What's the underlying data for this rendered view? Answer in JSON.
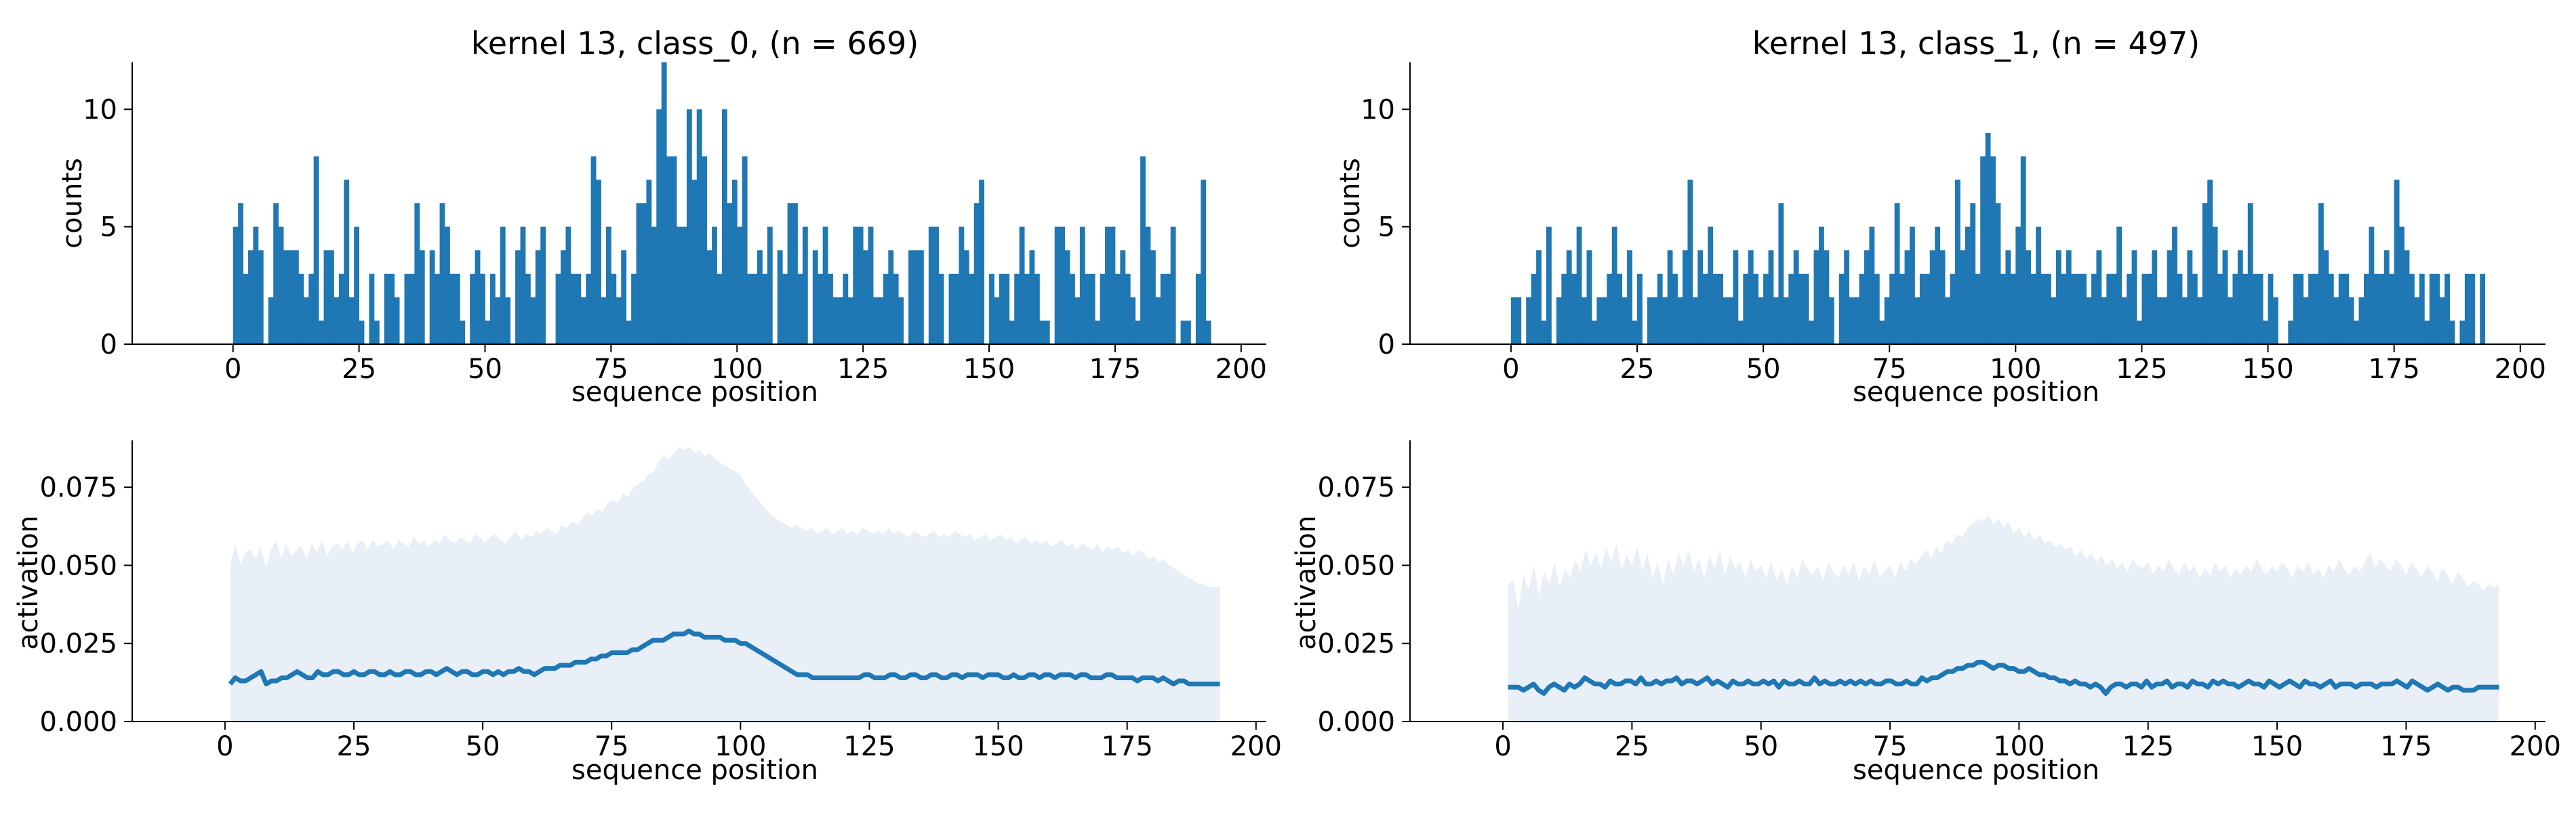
{
  "colors": {
    "bar": "#1f77b4",
    "line": "#1f77b4",
    "band": "#e8eff7",
    "axis": "#000000",
    "background": "#ffffff"
  },
  "chart_data": [
    {
      "type": "bar",
      "title": "kernel 13, class_0, (n = 669)",
      "xlabel": "sequence position",
      "ylabel": "counts",
      "xlim": [
        -20,
        205
      ],
      "ylim": [
        0,
        12
      ],
      "xticks": [
        0,
        25,
        50,
        75,
        100,
        125,
        150,
        175,
        200
      ],
      "yticks": [
        0,
        5,
        10
      ],
      "x_start": 0,
      "values": [
        5,
        6,
        3,
        4,
        5,
        4,
        0,
        2,
        6,
        5,
        4,
        4,
        4,
        3,
        2,
        3,
        8,
        1,
        4,
        4,
        2,
        3,
        7,
        2,
        5,
        1,
        0,
        3,
        1,
        0,
        3,
        3,
        2,
        0,
        3,
        3,
        6,
        4,
        0,
        4,
        3,
        6,
        5,
        3,
        3,
        1,
        0,
        3,
        4,
        3,
        1,
        3,
        2,
        5,
        2,
        0,
        4,
        5,
        3,
        2,
        4,
        5,
        0,
        0,
        3,
        4,
        5,
        3,
        3,
        2,
        3,
        8,
        7,
        2,
        5,
        3,
        2,
        4,
        1,
        3,
        6,
        6,
        7,
        5,
        10,
        12,
        8,
        8,
        5,
        5,
        10,
        7,
        10,
        8,
        4,
        5,
        3,
        10,
        6,
        7,
        5,
        8,
        3,
        3,
        4,
        3,
        5,
        0,
        4,
        3,
        6,
        6,
        3,
        5,
        0,
        4,
        3,
        5,
        3,
        2,
        2,
        3,
        2,
        5,
        5,
        4,
        5,
        2,
        2,
        3,
        4,
        3,
        2,
        0,
        4,
        4,
        4,
        0,
        5,
        5,
        3,
        0,
        3,
        3,
        5,
        4,
        3,
        6,
        7,
        0,
        3,
        2,
        3,
        3,
        1,
        3,
        5,
        3,
        4,
        3,
        1,
        1,
        0,
        5,
        5,
        4,
        3,
        2,
        5,
        3,
        3,
        1,
        3,
        5,
        5,
        3,
        4,
        3,
        2,
        1,
        8,
        5,
        4,
        2,
        3,
        3,
        5,
        0,
        1,
        1,
        0,
        3,
        7,
        1,
        0
      ]
    },
    {
      "type": "bar",
      "title": "kernel 13, class_1, (n = 497)",
      "xlabel": "sequence position",
      "ylabel": "counts",
      "xlim": [
        -20,
        205
      ],
      "ylim": [
        0,
        12
      ],
      "xticks": [
        0,
        25,
        50,
        75,
        100,
        125,
        150,
        175,
        200
      ],
      "yticks": [
        0,
        5,
        10
      ],
      "x_start": 0,
      "values": [
        2,
        2,
        0,
        2,
        3,
        4,
        1,
        5,
        0,
        2,
        3,
        4,
        3,
        5,
        2,
        4,
        1,
        2,
        2,
        3,
        5,
        3,
        2,
        4,
        1,
        3,
        0,
        2,
        2,
        3,
        2,
        4,
        3,
        2,
        4,
        7,
        2,
        4,
        3,
        5,
        3,
        3,
        2,
        2,
        4,
        1,
        3,
        4,
        3,
        2,
        3,
        4,
        2,
        6,
        2,
        3,
        4,
        3,
        3,
        1,
        4,
        5,
        4,
        2,
        0,
        3,
        4,
        2,
        2,
        3,
        4,
        5,
        3,
        1,
        2,
        3,
        6,
        3,
        4,
        5,
        2,
        3,
        3,
        4,
        5,
        4,
        2,
        3,
        7,
        4,
        5,
        6,
        3,
        8,
        9,
        8,
        6,
        3,
        4,
        3,
        5,
        8,
        4,
        3,
        5,
        3,
        3,
        2,
        4,
        3,
        4,
        3,
        3,
        3,
        2,
        3,
        4,
        2,
        3,
        3,
        5,
        2,
        3,
        4,
        1,
        3,
        3,
        4,
        2,
        2,
        4,
        5,
        3,
        2,
        4,
        3,
        2,
        6,
        7,
        5,
        3,
        4,
        2,
        3,
        4,
        3,
        6,
        3,
        3,
        1,
        3,
        2,
        0,
        0,
        1,
        3,
        3,
        2,
        3,
        3,
        6,
        4,
        3,
        2,
        3,
        3,
        2,
        1,
        2,
        3,
        5,
        3,
        3,
        4,
        3,
        7,
        5,
        4,
        3,
        2,
        3,
        1,
        3,
        3,
        2,
        3,
        1,
        0,
        1,
        3,
        3,
        0,
        3,
        0
      ]
    },
    {
      "type": "area",
      "xlabel": "sequence position",
      "ylabel": "activation",
      "xlim": [
        -18,
        202
      ],
      "ylim": [
        0,
        0.09
      ],
      "xticks": [
        0,
        25,
        50,
        75,
        100,
        125,
        150,
        175,
        200
      ],
      "yticks": [
        0.0,
        0.025,
        0.05,
        0.075
      ],
      "ytick_labels": [
        "0.000",
        "0.025",
        "0.050",
        "0.075"
      ],
      "x": [
        1,
        193
      ],
      "mean_values": [
        0.012,
        0.014,
        0.013,
        0.013,
        0.014,
        0.015,
        0.016,
        0.012,
        0.013,
        0.013,
        0.014,
        0.014,
        0.015,
        0.016,
        0.015,
        0.014,
        0.014,
        0.016,
        0.015,
        0.015,
        0.016,
        0.016,
        0.015,
        0.015,
        0.016,
        0.015,
        0.015,
        0.016,
        0.016,
        0.015,
        0.015,
        0.016,
        0.015,
        0.015,
        0.016,
        0.016,
        0.015,
        0.015,
        0.016,
        0.016,
        0.015,
        0.016,
        0.017,
        0.016,
        0.015,
        0.016,
        0.016,
        0.015,
        0.015,
        0.016,
        0.016,
        0.015,
        0.016,
        0.015,
        0.016,
        0.016,
        0.017,
        0.016,
        0.016,
        0.015,
        0.016,
        0.017,
        0.017,
        0.017,
        0.018,
        0.018,
        0.018,
        0.019,
        0.019,
        0.019,
        0.02,
        0.02,
        0.021,
        0.021,
        0.022,
        0.022,
        0.022,
        0.022,
        0.023,
        0.023,
        0.024,
        0.025,
        0.026,
        0.026,
        0.026,
        0.027,
        0.028,
        0.028,
        0.028,
        0.029,
        0.028,
        0.028,
        0.027,
        0.027,
        0.027,
        0.027,
        0.026,
        0.026,
        0.026,
        0.025,
        0.025,
        0.024,
        0.023,
        0.022,
        0.021,
        0.02,
        0.019,
        0.018,
        0.017,
        0.016,
        0.015,
        0.015,
        0.015,
        0.014,
        0.014,
        0.014,
        0.014,
        0.014,
        0.014,
        0.014,
        0.014,
        0.014,
        0.014,
        0.015,
        0.015,
        0.014,
        0.014,
        0.014,
        0.015,
        0.015,
        0.014,
        0.014,
        0.015,
        0.015,
        0.014,
        0.014,
        0.015,
        0.015,
        0.014,
        0.014,
        0.015,
        0.015,
        0.014,
        0.015,
        0.015,
        0.015,
        0.014,
        0.015,
        0.015,
        0.015,
        0.014,
        0.014,
        0.015,
        0.014,
        0.014,
        0.015,
        0.015,
        0.014,
        0.015,
        0.015,
        0.014,
        0.015,
        0.015,
        0.015,
        0.014,
        0.015,
        0.015,
        0.014,
        0.014,
        0.014,
        0.015,
        0.015,
        0.014,
        0.014,
        0.014,
        0.014,
        0.013,
        0.014,
        0.014,
        0.014,
        0.013,
        0.014,
        0.013,
        0.012,
        0.013,
        0.013,
        0.012,
        0.012,
        0.012,
        0.012,
        0.012,
        0.012,
        0.012
      ],
      "upper_values": [
        0.05,
        0.057,
        0.05,
        0.054,
        0.055,
        0.052,
        0.056,
        0.049,
        0.055,
        0.058,
        0.052,
        0.057,
        0.053,
        0.055,
        0.056,
        0.052,
        0.057,
        0.054,
        0.058,
        0.053,
        0.056,
        0.057,
        0.055,
        0.058,
        0.054,
        0.057,
        0.058,
        0.055,
        0.058,
        0.056,
        0.057,
        0.058,
        0.055,
        0.058,
        0.057,
        0.056,
        0.059,
        0.057,
        0.058,
        0.056,
        0.058,
        0.057,
        0.06,
        0.058,
        0.057,
        0.059,
        0.058,
        0.057,
        0.06,
        0.059,
        0.057,
        0.059,
        0.06,
        0.058,
        0.057,
        0.059,
        0.061,
        0.058,
        0.06,
        0.059,
        0.061,
        0.06,
        0.062,
        0.061,
        0.06,
        0.063,
        0.062,
        0.064,
        0.063,
        0.065,
        0.067,
        0.066,
        0.068,
        0.067,
        0.07,
        0.071,
        0.07,
        0.073,
        0.072,
        0.075,
        0.076,
        0.077,
        0.079,
        0.08,
        0.083,
        0.085,
        0.084,
        0.086,
        0.088,
        0.087,
        0.088,
        0.086,
        0.087,
        0.085,
        0.086,
        0.084,
        0.083,
        0.082,
        0.081,
        0.08,
        0.079,
        0.076,
        0.074,
        0.072,
        0.07,
        0.068,
        0.066,
        0.065,
        0.064,
        0.063,
        0.062,
        0.063,
        0.062,
        0.061,
        0.062,
        0.06,
        0.061,
        0.062,
        0.06,
        0.061,
        0.062,
        0.06,
        0.061,
        0.06,
        0.062,
        0.061,
        0.06,
        0.061,
        0.06,
        0.062,
        0.06,
        0.061,
        0.06,
        0.059,
        0.061,
        0.06,
        0.059,
        0.06,
        0.061,
        0.059,
        0.06,
        0.059,
        0.061,
        0.06,
        0.059,
        0.06,
        0.058,
        0.059,
        0.06,
        0.058,
        0.059,
        0.06,
        0.058,
        0.059,
        0.057,
        0.058,
        0.059,
        0.057,
        0.058,
        0.057,
        0.058,
        0.056,
        0.057,
        0.058,
        0.056,
        0.057,
        0.055,
        0.057,
        0.056,
        0.055,
        0.057,
        0.054,
        0.056,
        0.055,
        0.056,
        0.054,
        0.055,
        0.053,
        0.055,
        0.054,
        0.052,
        0.053,
        0.051,
        0.052,
        0.05,
        0.049,
        0.048,
        0.047,
        0.046,
        0.045,
        0.044,
        0.044,
        0.043,
        0.043,
        0.043
      ],
      "lower_values": [
        0,
        0
      ]
    },
    {
      "type": "area",
      "xlabel": "sequence position",
      "ylabel": "activation",
      "xlim": [
        -18,
        202
      ],
      "ylim": [
        0,
        0.09
      ],
      "xticks": [
        0,
        25,
        50,
        75,
        100,
        125,
        150,
        175,
        200
      ],
      "yticks": [
        0.0,
        0.025,
        0.05,
        0.075
      ],
      "ytick_labels": [
        "0.000",
        "0.025",
        "0.050",
        "0.075"
      ],
      "x": [
        1,
        193
      ],
      "mean_values": [
        0.011,
        0.011,
        0.011,
        0.01,
        0.011,
        0.012,
        0.01,
        0.009,
        0.011,
        0.012,
        0.011,
        0.01,
        0.012,
        0.011,
        0.012,
        0.014,
        0.013,
        0.012,
        0.012,
        0.011,
        0.013,
        0.012,
        0.012,
        0.013,
        0.013,
        0.012,
        0.014,
        0.012,
        0.012,
        0.013,
        0.012,
        0.013,
        0.013,
        0.014,
        0.012,
        0.013,
        0.013,
        0.012,
        0.013,
        0.014,
        0.012,
        0.013,
        0.012,
        0.011,
        0.013,
        0.012,
        0.012,
        0.013,
        0.012,
        0.012,
        0.013,
        0.012,
        0.013,
        0.011,
        0.013,
        0.012,
        0.012,
        0.013,
        0.012,
        0.012,
        0.014,
        0.012,
        0.013,
        0.012,
        0.012,
        0.013,
        0.012,
        0.013,
        0.012,
        0.013,
        0.012,
        0.013,
        0.012,
        0.012,
        0.013,
        0.013,
        0.012,
        0.012,
        0.013,
        0.012,
        0.012,
        0.014,
        0.013,
        0.014,
        0.014,
        0.015,
        0.016,
        0.016,
        0.017,
        0.017,
        0.018,
        0.018,
        0.019,
        0.019,
        0.018,
        0.017,
        0.018,
        0.018,
        0.017,
        0.017,
        0.016,
        0.016,
        0.017,
        0.016,
        0.015,
        0.015,
        0.014,
        0.014,
        0.013,
        0.013,
        0.012,
        0.013,
        0.012,
        0.012,
        0.011,
        0.012,
        0.011,
        0.009,
        0.011,
        0.012,
        0.012,
        0.011,
        0.012,
        0.012,
        0.011,
        0.013,
        0.011,
        0.012,
        0.012,
        0.013,
        0.011,
        0.012,
        0.012,
        0.011,
        0.013,
        0.012,
        0.012,
        0.011,
        0.013,
        0.012,
        0.013,
        0.012,
        0.012,
        0.011,
        0.012,
        0.013,
        0.012,
        0.012,
        0.011,
        0.013,
        0.012,
        0.011,
        0.012,
        0.013,
        0.012,
        0.011,
        0.013,
        0.012,
        0.012,
        0.011,
        0.012,
        0.013,
        0.011,
        0.012,
        0.012,
        0.012,
        0.011,
        0.012,
        0.012,
        0.012,
        0.011,
        0.012,
        0.012,
        0.012,
        0.013,
        0.012,
        0.011,
        0.013,
        0.012,
        0.011,
        0.01,
        0.011,
        0.012,
        0.011,
        0.01,
        0.011,
        0.011,
        0.01,
        0.01,
        0.01,
        0.011,
        0.011,
        0.011,
        0.011,
        0.011
      ],
      "upper_values": [
        0.044,
        0.045,
        0.036,
        0.047,
        0.042,
        0.05,
        0.04,
        0.048,
        0.044,
        0.051,
        0.043,
        0.049,
        0.046,
        0.052,
        0.048,
        0.055,
        0.05,
        0.054,
        0.049,
        0.056,
        0.051,
        0.057,
        0.049,
        0.053,
        0.05,
        0.056,
        0.048,
        0.054,
        0.046,
        0.051,
        0.044,
        0.052,
        0.047,
        0.054,
        0.05,
        0.055,
        0.048,
        0.052,
        0.046,
        0.053,
        0.049,
        0.055,
        0.047,
        0.053,
        0.049,
        0.051,
        0.046,
        0.052,
        0.048,
        0.05,
        0.046,
        0.051,
        0.045,
        0.049,
        0.044,
        0.05,
        0.046,
        0.052,
        0.049,
        0.047,
        0.05,
        0.045,
        0.051,
        0.048,
        0.046,
        0.05,
        0.047,
        0.051,
        0.045,
        0.05,
        0.047,
        0.052,
        0.046,
        0.048,
        0.05,
        0.046,
        0.051,
        0.048,
        0.052,
        0.05,
        0.053,
        0.055,
        0.052,
        0.056,
        0.054,
        0.058,
        0.057,
        0.06,
        0.059,
        0.062,
        0.063,
        0.065,
        0.064,
        0.066,
        0.063,
        0.065,
        0.062,
        0.064,
        0.06,
        0.062,
        0.059,
        0.061,
        0.058,
        0.06,
        0.057,
        0.058,
        0.056,
        0.057,
        0.055,
        0.056,
        0.053,
        0.055,
        0.052,
        0.054,
        0.051,
        0.053,
        0.05,
        0.052,
        0.049,
        0.051,
        0.048,
        0.052,
        0.05,
        0.049,
        0.051,
        0.047,
        0.05,
        0.048,
        0.052,
        0.049,
        0.047,
        0.051,
        0.048,
        0.05,
        0.046,
        0.049,
        0.047,
        0.051,
        0.048,
        0.05,
        0.046,
        0.049,
        0.047,
        0.05,
        0.048,
        0.052,
        0.049,
        0.047,
        0.05,
        0.048,
        0.051,
        0.049,
        0.046,
        0.05,
        0.048,
        0.051,
        0.047,
        0.049,
        0.046,
        0.05,
        0.048,
        0.052,
        0.049,
        0.047,
        0.05,
        0.048,
        0.051,
        0.054,
        0.049,
        0.052,
        0.05,
        0.048,
        0.052,
        0.05,
        0.047,
        0.051,
        0.049,
        0.046,
        0.05,
        0.048,
        0.045,
        0.049,
        0.047,
        0.044,
        0.048,
        0.046,
        0.043,
        0.045,
        0.044,
        0.042,
        0.044,
        0.043,
        0.044
      ],
      "lower_values": [
        0,
        0
      ]
    }
  ]
}
